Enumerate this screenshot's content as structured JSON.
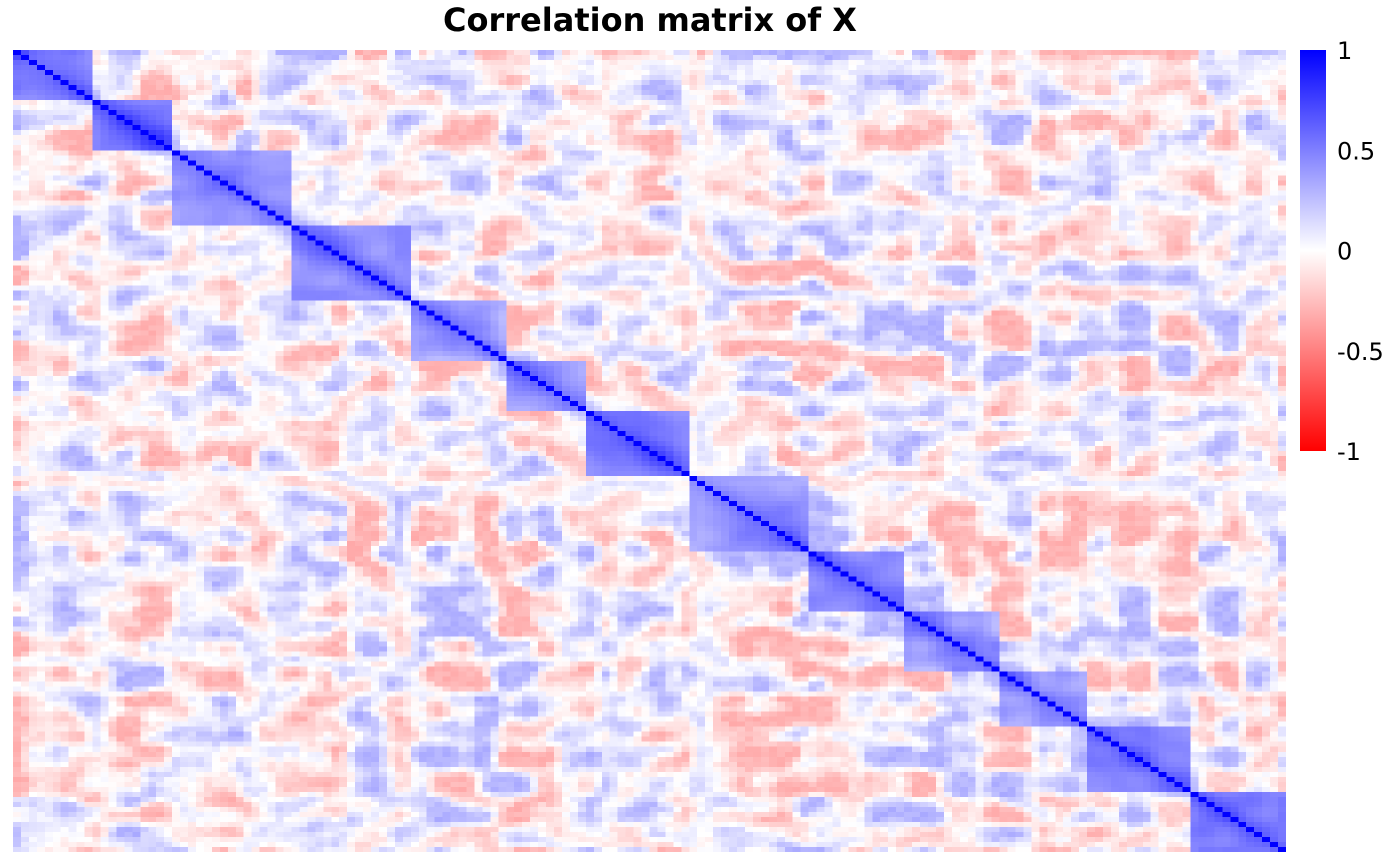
{
  "chart_data": {
    "type": "heatmap",
    "title": "Correlation matrix of X",
    "xlabel": "",
    "ylabel": "",
    "value_range": [
      -1,
      1
    ],
    "colorbar": {
      "ticks": [
        "1",
        "0.5",
        "0",
        "-0.5",
        "-1"
      ],
      "tick_values": [
        1,
        0.5,
        0,
        -0.5,
        -1
      ],
      "colors": {
        "high": "#0000ff",
        "mid": "#ffffff",
        "low": "#ff0000"
      },
      "placement": "right"
    },
    "matrix_size": 160,
    "diagonal_value": 1,
    "blocks": [
      {
        "start": 0,
        "end": 10,
        "within_correlation": 0.55
      },
      {
        "start": 10,
        "end": 20,
        "within_correlation": 0.65
      },
      {
        "start": 20,
        "end": 35,
        "within_correlation": 0.5
      },
      {
        "start": 35,
        "end": 50,
        "within_correlation": 0.55
      },
      {
        "start": 50,
        "end": 62,
        "within_correlation": 0.45
      },
      {
        "start": 62,
        "end": 72,
        "within_correlation": 0.5
      },
      {
        "start": 72,
        "end": 85,
        "within_correlation": 0.6
      },
      {
        "start": 85,
        "end": 100,
        "within_correlation": 0.45
      },
      {
        "start": 100,
        "end": 112,
        "within_correlation": 0.55
      },
      {
        "start": 112,
        "end": 124,
        "within_correlation": 0.5
      },
      {
        "start": 124,
        "end": 135,
        "within_correlation": 0.45
      },
      {
        "start": 135,
        "end": 148,
        "within_correlation": 0.55
      },
      {
        "start": 148,
        "end": 160,
        "within_correlation": 0.6
      }
    ],
    "off_block_range": [
      -0.3,
      0.3
    ]
  }
}
